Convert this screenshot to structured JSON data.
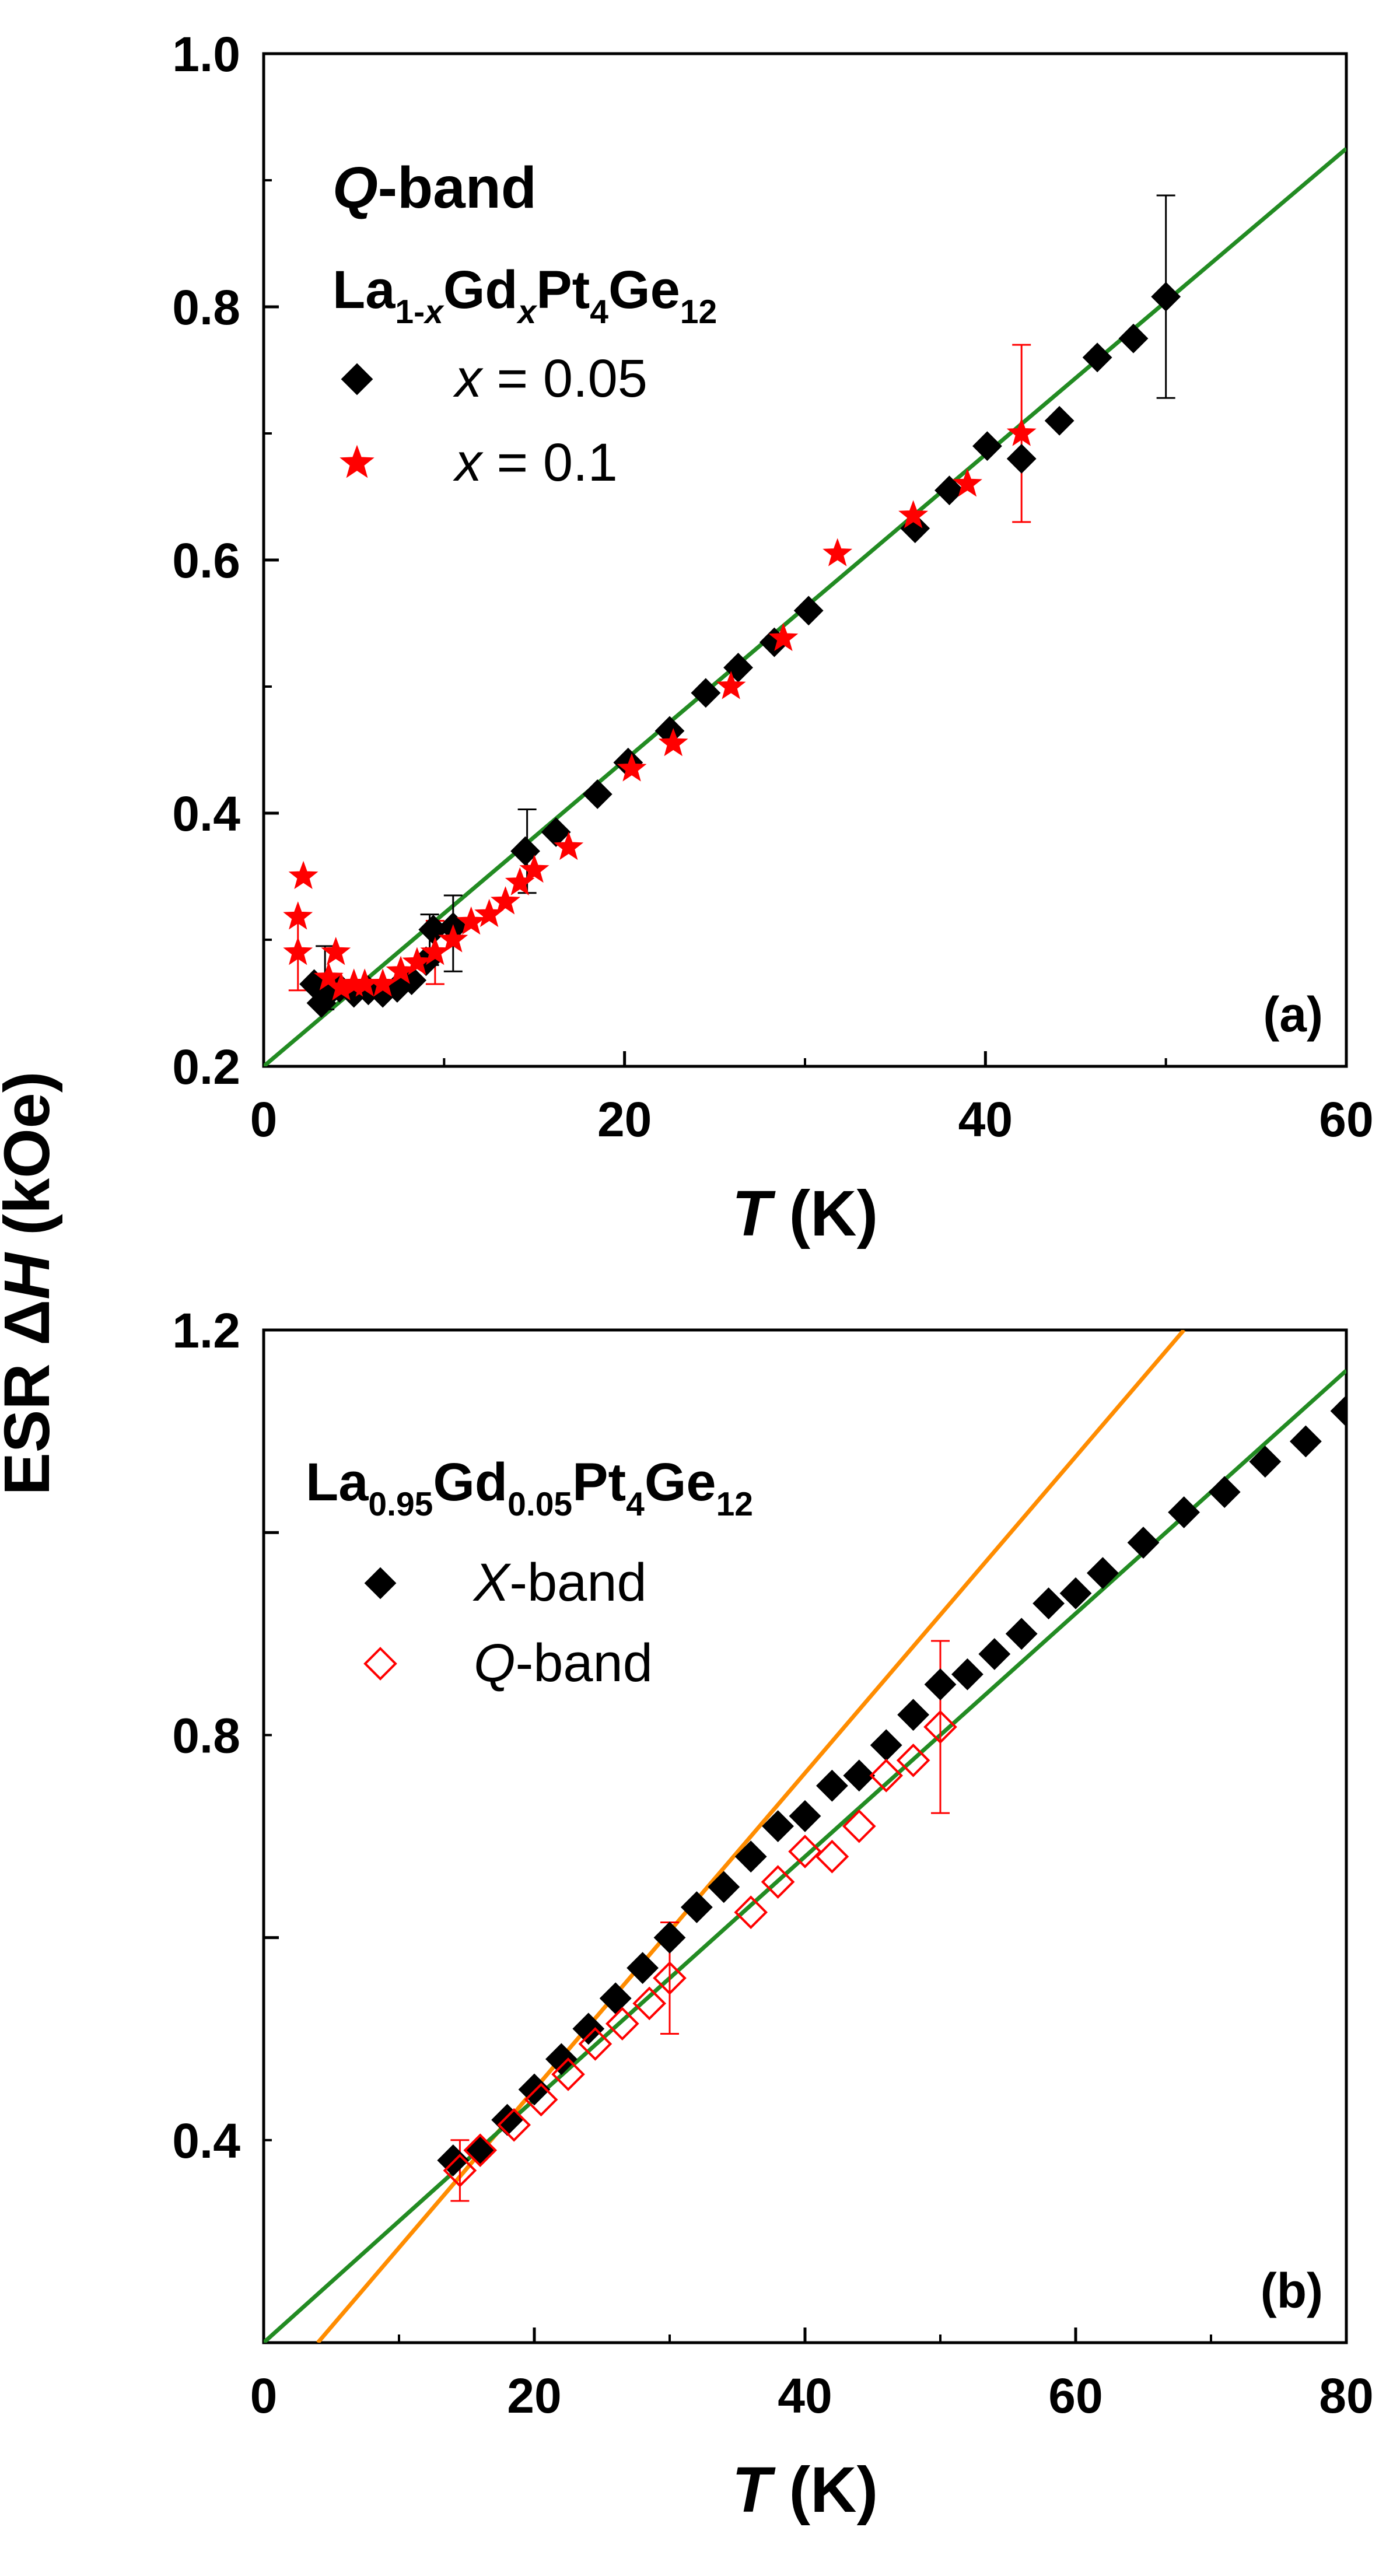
{
  "y_axis_label": {
    "prefix": "ESR ",
    "delta": "Δ",
    "symbol": "H",
    "unit": " (kOe)"
  },
  "colors": {
    "black": "#000000",
    "red": "#ff0000",
    "green": "#228b22",
    "orange": "#ff8c00"
  },
  "chart_data": [
    {
      "type": "scatter",
      "panel_label": "(a)",
      "xlabel": {
        "symbol": "T",
        "unit": " (K)"
      },
      "xlim": [
        0,
        60
      ],
      "ylim": [
        0.2,
        1.0
      ],
      "xticks": [
        "0",
        "20",
        "40",
        "60"
      ],
      "yticks": [
        "0.2",
        "0.4",
        "0.6",
        "0.8",
        "1.0"
      ],
      "legend": {
        "title_italic": "Q",
        "title_rest": "-band",
        "formula": {
          "p1": "La",
          "s1": "1-",
          "s1i": "x",
          "p2": "Gd",
          "s2i": "x",
          "p3": "Pt",
          "s3": "4",
          "p4": "Ge",
          "s4": "12"
        },
        "entries": [
          {
            "var": "x",
            "eq": " = 0.05",
            "marker": "diamond",
            "color": "#000000"
          },
          {
            "var": "x",
            "eq": " = 0.1",
            "marker": "star",
            "color": "#ff0000"
          }
        ]
      },
      "series": [
        {
          "name": "x = 0.05",
          "marker": "diamond",
          "color": "#000000",
          "fill": true,
          "points": [
            [
              2.8,
              0.265
            ],
            [
              3.2,
              0.25
            ],
            [
              3.6,
              0.258
            ],
            [
              4.2,
              0.262
            ],
            [
              5.0,
              0.258
            ],
            [
              5.8,
              0.26
            ],
            [
              6.6,
              0.258
            ],
            [
              7.4,
              0.262
            ],
            [
              8.2,
              0.268
            ],
            [
              9.0,
              0.283
            ],
            [
              9.4,
              0.308
            ],
            [
              10.5,
              0.31
            ],
            [
              14.5,
              0.37
            ],
            [
              16.2,
              0.385
            ],
            [
              18.5,
              0.415
            ],
            [
              20.2,
              0.44
            ],
            [
              22.5,
              0.465
            ],
            [
              24.5,
              0.495
            ],
            [
              26.3,
              0.515
            ],
            [
              28.3,
              0.535
            ],
            [
              30.2,
              0.56
            ],
            [
              36.1,
              0.625
            ],
            [
              38.0,
              0.655
            ],
            [
              40.1,
              0.69
            ],
            [
              42.0,
              0.68
            ],
            [
              44.1,
              0.71
            ],
            [
              46.2,
              0.76
            ],
            [
              48.2,
              0.775
            ],
            [
              50.0,
              0.808
            ]
          ]
        },
        {
          "name": "x = 0.1",
          "marker": "star",
          "color": "#ff0000",
          "fill": true,
          "points": [
            [
              1.9,
              0.29
            ],
            [
              1.9,
              0.318
            ],
            [
              2.2,
              0.35
            ],
            [
              3.6,
              0.27
            ],
            [
              4.0,
              0.29
            ],
            [
              4.3,
              0.262
            ],
            [
              5.0,
              0.265
            ],
            [
              5.6,
              0.265
            ],
            [
              6.6,
              0.265
            ],
            [
              7.6,
              0.275
            ],
            [
              8.5,
              0.282
            ],
            [
              9.5,
              0.29
            ],
            [
              10.5,
              0.3
            ],
            [
              11.5,
              0.314
            ],
            [
              12.5,
              0.32
            ],
            [
              13.4,
              0.33
            ],
            [
              14.2,
              0.345
            ],
            [
              15.0,
              0.355
            ],
            [
              16.9,
              0.373
            ],
            [
              20.4,
              0.435
            ],
            [
              22.7,
              0.455
            ],
            [
              25.9,
              0.5
            ],
            [
              28.8,
              0.538
            ],
            [
              31.8,
              0.605
            ],
            [
              36.0,
              0.635
            ],
            [
              39.0,
              0.66
            ],
            [
              42.0,
              0.7
            ]
          ]
        }
      ],
      "error_bars": [
        {
          "x": 3.4,
          "y": 0.27,
          "err": 0.025,
          "color": "#000000"
        },
        {
          "x": 9.2,
          "y": 0.3,
          "err": 0.02,
          "color": "#000000"
        },
        {
          "x": 10.5,
          "y": 0.305,
          "err": 0.03,
          "color": "#000000"
        },
        {
          "x": 14.6,
          "y": 0.37,
          "err": 0.033,
          "color": "#000000"
        },
        {
          "x": 50.0,
          "y": 0.808,
          "err": 0.08,
          "color": "#000000"
        },
        {
          "x": 1.9,
          "y": 0.29,
          "err": 0.03,
          "color": "#ff0000"
        },
        {
          "x": 9.5,
          "y": 0.29,
          "err": 0.025,
          "color": "#ff0000"
        },
        {
          "x": 42.0,
          "y": 0.7,
          "err": 0.07,
          "color": "#ff0000"
        }
      ],
      "fit_lines": [
        {
          "color": "#228b22",
          "x": [
            0,
            60
          ],
          "y": [
            0.2,
            0.925
          ]
        }
      ]
    },
    {
      "type": "scatter",
      "panel_label": "(b)",
      "xlabel": {
        "symbol": "T",
        "unit": " (K)"
      },
      "xlim": [
        0,
        80
      ],
      "ylim": [
        0.2,
        1.2
      ],
      "xticks": [
        "0",
        "20",
        "40",
        "60",
        "80"
      ],
      "yticks": [
        "0.4",
        "0.8",
        "1.2"
      ],
      "legend": {
        "formula": {
          "p1": "La",
          "s1": "0.95",
          "p2": "Gd",
          "s2": "0.05",
          "p3": "Pt",
          "s3": "4",
          "p4": "Ge",
          "s4": "12"
        },
        "entries": [
          {
            "var": "X",
            "rest": "-band",
            "marker": "diamond",
            "color": "#000000"
          },
          {
            "var": "Q",
            "rest": "-band",
            "marker": "diamond-open",
            "color": "#ff0000"
          }
        ]
      },
      "series": [
        {
          "name": "X-band",
          "marker": "diamond",
          "color": "#000000",
          "fill": true,
          "points": [
            [
              14,
              0.38
            ],
            [
              16,
              0.39
            ],
            [
              18,
              0.42
            ],
            [
              20,
              0.45
            ],
            [
              22,
              0.48
            ],
            [
              24,
              0.51
            ],
            [
              26,
              0.54
            ],
            [
              28,
              0.57
            ],
            [
              30,
              0.6
            ],
            [
              32,
              0.63
            ],
            [
              34,
              0.65
            ],
            [
              36,
              0.68
            ],
            [
              38,
              0.71
            ],
            [
              40,
              0.72
            ],
            [
              42,
              0.75
            ],
            [
              44,
              0.76
            ],
            [
              46,
              0.79
            ],
            [
              48,
              0.82
            ],
            [
              50,
              0.85
            ],
            [
              52,
              0.86
            ],
            [
              54,
              0.88
            ],
            [
              56,
              0.9
            ],
            [
              58,
              0.93
            ],
            [
              60,
              0.94
            ],
            [
              62,
              0.96
            ],
            [
              65,
              0.99
            ],
            [
              68,
              1.02
            ],
            [
              71,
              1.04
            ],
            [
              74,
              1.07
            ],
            [
              77,
              1.09
            ],
            [
              80,
              1.12
            ]
          ]
        },
        {
          "name": "Q-band",
          "marker": "diamond-open",
          "color": "#ff0000",
          "fill": false,
          "points": [
            [
              14.5,
              0.37
            ],
            [
              16,
              0.39
            ],
            [
              18.5,
              0.415
            ],
            [
              20.5,
              0.44
            ],
            [
              22.5,
              0.465
            ],
            [
              24.5,
              0.495
            ],
            [
              26.5,
              0.515
            ],
            [
              28.5,
              0.535
            ],
            [
              30,
              0.56
            ],
            [
              36,
              0.625
            ],
            [
              38,
              0.655
            ],
            [
              40,
              0.685
            ],
            [
              42,
              0.68
            ],
            [
              44,
              0.71
            ],
            [
              46,
              0.76
            ],
            [
              48,
              0.775
            ],
            [
              50,
              0.808
            ]
          ]
        }
      ],
      "error_bars": [
        {
          "x": 14.5,
          "y": 0.37,
          "err": 0.03,
          "color": "#ff0000"
        },
        {
          "x": 30,
          "y": 0.56,
          "err": 0.055,
          "color": "#ff0000"
        },
        {
          "x": 50,
          "y": 0.808,
          "err": 0.085,
          "color": "#ff0000"
        }
      ],
      "fit_lines": [
        {
          "color": "#ff8c00",
          "x": [
            4,
            68
          ],
          "y": [
            0.2,
            1.2
          ]
        },
        {
          "color": "#228b22",
          "x": [
            0,
            80
          ],
          "y": [
            0.2,
            1.16
          ]
        }
      ]
    }
  ]
}
